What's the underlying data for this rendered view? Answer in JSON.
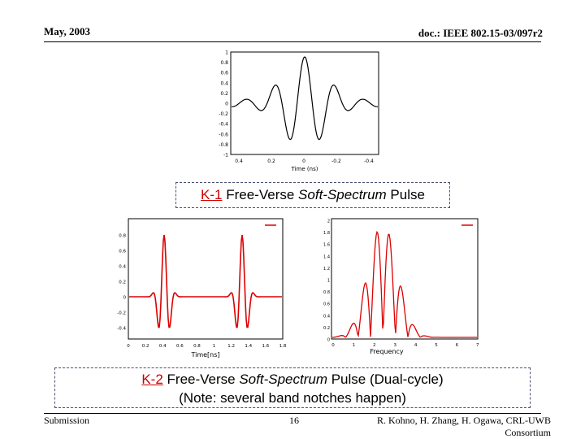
{
  "header": {
    "date": "May, 2003",
    "doc_id": "doc.: IEEE 802.15-03/097r2"
  },
  "footer": {
    "left": "Submission",
    "page": "16",
    "authors_line1": "R. Kohno, H. Zhang, H. Ogawa, CRL-UWB",
    "authors_line2": "Consortium"
  },
  "caption1": {
    "tag": "K-1",
    "pre": " Free-Verse ",
    "italic": "Soft-Spectrum",
    "post": " Pulse"
  },
  "caption2": {
    "tag": "K-2",
    "pre": " Free-Verse ",
    "italic": "Soft-Spectrum",
    "post": " Pulse (Dual-cycle)",
    "note": "(Note: several band notches happen)"
  },
  "figures": {
    "top": {
      "xlabel": "Time (ns)",
      "xticks": [
        "0.4",
        "0.2",
        "0",
        "-0.2",
        "-0.4"
      ],
      "yticks": [
        "1",
        "0.8",
        "0.6",
        "0.4",
        "0.2",
        "0",
        "-0.2",
        "-0.4",
        "-0.6",
        "-0.8",
        "-1"
      ],
      "line_color": "#000000"
    },
    "bottom_left": {
      "xlabel": "Time[ns]",
      "xticks": [
        "0",
        "0.2",
        "0.4",
        "0.6",
        "0.8",
        "1",
        "1.2",
        "1.4",
        "1.6",
        "1.8"
      ],
      "yticks": [
        "0.8",
        "0.6",
        "0.4",
        "0.2",
        "0",
        "-0.2",
        "-0.4"
      ],
      "line_color": "#dd0000"
    },
    "bottom_right": {
      "xlabel": "Frequency",
      "xticks": [
        "0",
        "1",
        "2",
        "3",
        "4",
        "5",
        "6",
        "7"
      ],
      "yticks": [
        "2",
        "1.8",
        "1.6",
        "1.4",
        "1.2",
        "1",
        "0.8",
        "0.6",
        "0.4",
        "0.2",
        "0"
      ],
      "line_color": "#dd0000"
    }
  }
}
